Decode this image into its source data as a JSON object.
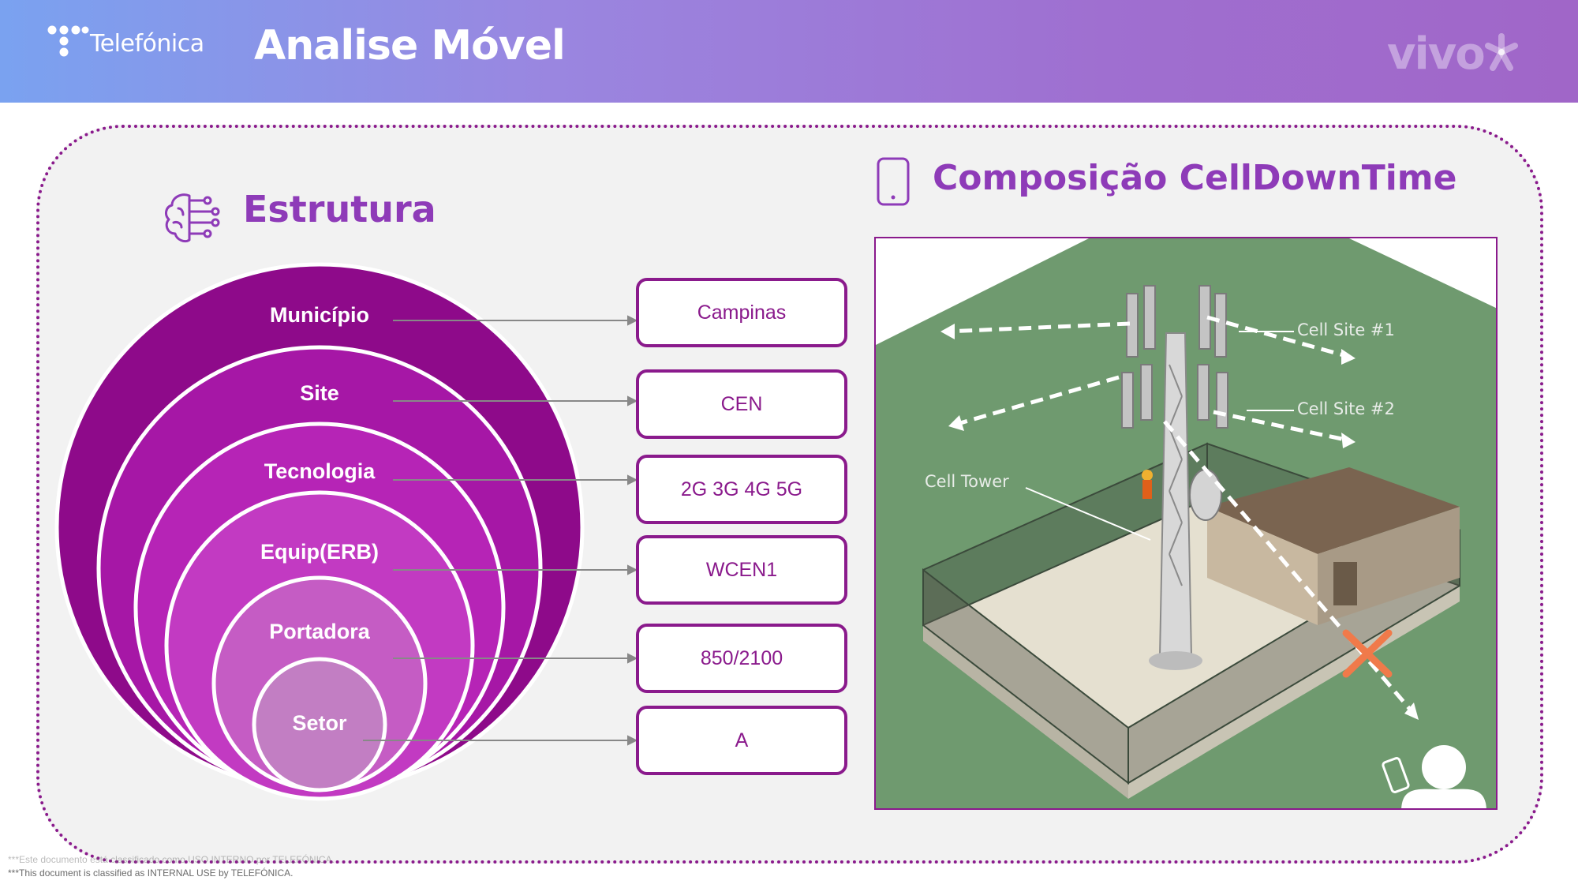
{
  "header": {
    "brand_name": "Telefónica",
    "title": "Analise Móvel",
    "partner_brand": "vivo"
  },
  "left_section": {
    "title": "Estrutura",
    "icon": "brain-network-icon",
    "levels": [
      {
        "label": "Município",
        "value": "Campinas"
      },
      {
        "label": "Site",
        "value": "CEN"
      },
      {
        "label": "Tecnologia",
        "value": "2G 3G 4G 5G"
      },
      {
        "label": "Equip(ERB)",
        "value": "WCEN1"
      },
      {
        "label": "Portadora",
        "value": "850/2100"
      },
      {
        "label": "Setor",
        "value": "A"
      }
    ]
  },
  "right_section": {
    "title": "Composição CellDownTime",
    "icon": "smartphone-icon",
    "illustration_labels": {
      "cell_site_1": "Cell Site #1",
      "cell_site_2": "Cell Site #2",
      "cell_tower": "Cell Tower"
    }
  },
  "footer": {
    "note_pt": "***Este documento está classificado como USO INTERNO por TELEFÓNICA.",
    "note_en": "***This document is classified as INTERNAL USE by TELEFÓNICA."
  },
  "colors": {
    "accent_purple": "#8a1a8c",
    "title_purple": "#8e3bb8",
    "failure_cross": "#f07a4a"
  }
}
